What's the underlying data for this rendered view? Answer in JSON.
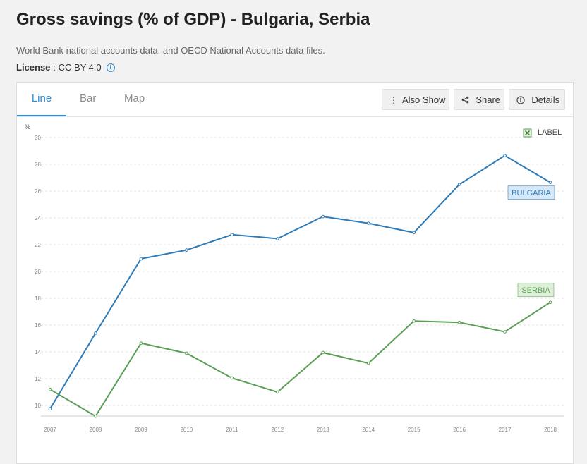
{
  "header": {
    "title": "Gross savings (% of GDP) - Bulgaria, Serbia",
    "source": "World Bank national accounts data, and OECD National Accounts data files.",
    "license_label": "License",
    "license_value": ": CC BY-4.0"
  },
  "tabs": [
    {
      "label": "Line",
      "active": true
    },
    {
      "label": "Bar",
      "active": false
    },
    {
      "label": "Map",
      "active": false
    }
  ],
  "toolbar": {
    "also_show": "Also Show",
    "share": "Share",
    "details": "Details"
  },
  "legend_toggle": "LABEL",
  "chart_data": {
    "type": "line",
    "ylabel": "%",
    "ylim": [
      9,
      30
    ],
    "y_ticks": [
      10,
      12,
      14,
      16,
      18,
      20,
      22,
      24,
      26,
      28,
      30
    ],
    "grid": true,
    "x": [
      "2007",
      "2008",
      "2009",
      "2010",
      "2011",
      "2012",
      "2013",
      "2014",
      "2015",
      "2016",
      "2017",
      "2018"
    ],
    "series": [
      {
        "name": "BULGARIA",
        "color": "#2e7bb8",
        "label_bg": "#d6e8f7",
        "values": [
          9.75,
          15.4,
          20.95,
          21.6,
          22.75,
          22.45,
          24.1,
          23.6,
          22.9,
          26.5,
          28.65,
          26.65
        ]
      },
      {
        "name": "SERBIA",
        "color": "#5a9e55",
        "label_bg": "#dff0d8",
        "values": [
          11.2,
          9.2,
          14.65,
          13.9,
          12.05,
          11.0,
          13.95,
          13.15,
          16.3,
          16.2,
          15.5,
          17.7
        ]
      }
    ]
  }
}
